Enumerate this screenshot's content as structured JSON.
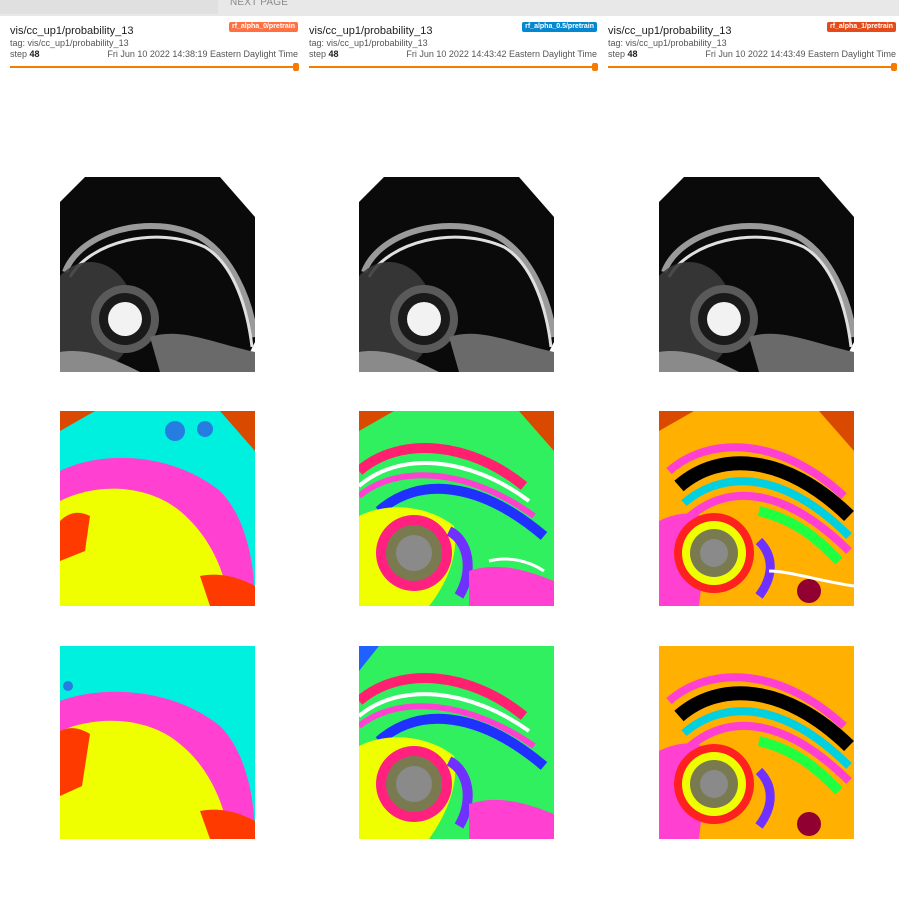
{
  "pager": {
    "next_label": "NEXT PAGE"
  },
  "cards": [
    {
      "run": "rf_alpha_0/pretrain",
      "run_color": "#ff7043",
      "title": "vis/cc_up1/probability_13",
      "tag": "tag: vis/cc_up1/probability_13",
      "step_label": "step",
      "step": "48",
      "date": "Fri Jun 10 2022 14:38:19 Eastern Daylight Time"
    },
    {
      "run": "rf_alpha_0.5/pretrain",
      "run_color": "#0288d1",
      "title": "vis/cc_up1/probability_13",
      "tag": "tag: vis/cc_up1/probability_13",
      "step_label": "step",
      "step": "48",
      "date": "Fri Jun 10 2022 14:43:42 Eastern Daylight Time"
    },
    {
      "run": "rf_alpha_1/pretrain",
      "run_color": "#e64a19",
      "title": "vis/cc_up1/probability_13",
      "tag": "tag: vis/cc_up1/probability_13",
      "step_label": "step",
      "step": "48",
      "date": "Fri Jun 10 2022 14:43:49 Eastern Daylight Time"
    }
  ],
  "images": [
    {
      "kind": "mri"
    },
    {
      "kind": "mri"
    },
    {
      "kind": "mri"
    },
    {
      "kind": "seg-coarse"
    },
    {
      "kind": "seg-fine"
    },
    {
      "kind": "seg-fine-orange"
    },
    {
      "kind": "seg-coarse-2"
    },
    {
      "kind": "seg-fine-2"
    },
    {
      "kind": "seg-fine-orange-2"
    }
  ]
}
